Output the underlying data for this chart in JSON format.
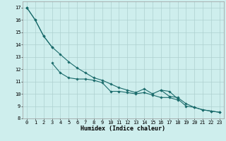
{
  "xlabel": "Humidex (Indice chaleur)",
  "background_color": "#ceeeed",
  "grid_color": "#aed0d0",
  "line_color": "#1a6b6b",
  "x_data": [
    0,
    1,
    2,
    3,
    4,
    5,
    6,
    7,
    8,
    9,
    10,
    11,
    12,
    13,
    14,
    15,
    16,
    17,
    18,
    19,
    20,
    21,
    22,
    23
  ],
  "line1": [
    17.0,
    16.0,
    14.7,
    13.8,
    13.2,
    12.6,
    12.1,
    11.7,
    11.3,
    11.1,
    10.8,
    10.5,
    10.3,
    10.1,
    10.4,
    10.0,
    10.3,
    10.2,
    9.6,
    9.0,
    8.9,
    8.7,
    8.6,
    8.5
  ],
  "line2": [
    17.0,
    null,
    null,
    12.5,
    11.7,
    11.3,
    11.2,
    11.2,
    11.1,
    10.9,
    10.2,
    10.2,
    10.1,
    10.0,
    10.1,
    9.9,
    9.7,
    9.7,
    9.5,
    null,
    null,
    null,
    null,
    null
  ],
  "line3": [
    17.0,
    16.0,
    14.7,
    13.8,
    null,
    null,
    null,
    null,
    null,
    null,
    null,
    null,
    null,
    null,
    null,
    null,
    10.3,
    9.8,
    9.7,
    9.2,
    8.9,
    8.7,
    8.6,
    8.5
  ],
  "ylim": [
    8,
    17.5
  ],
  "xlim": [
    -0.5,
    23.5
  ],
  "yticks": [
    8,
    9,
    10,
    11,
    12,
    13,
    14,
    15,
    16,
    17
  ],
  "xticks": [
    0,
    1,
    2,
    3,
    4,
    5,
    6,
    7,
    8,
    9,
    10,
    11,
    12,
    13,
    14,
    15,
    16,
    17,
    18,
    19,
    20,
    21,
    22,
    23
  ],
  "tick_fontsize": 5.0,
  "xlabel_fontsize": 6.0
}
